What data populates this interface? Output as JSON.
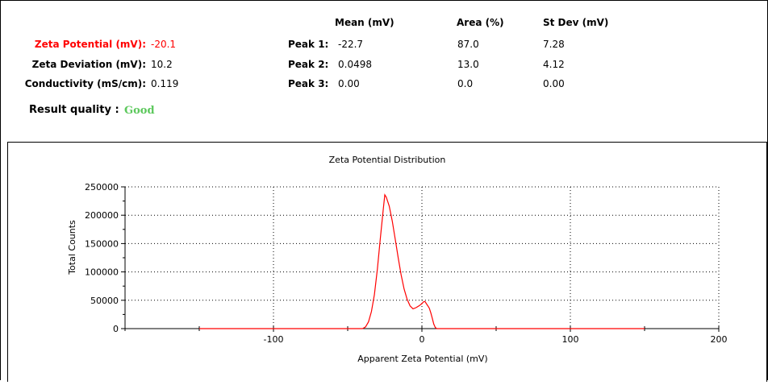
{
  "summary": {
    "zeta_potential_label": "Zeta Potential (mV):",
    "zeta_potential_value": "-20.1",
    "zeta_deviation_label": "Zeta Deviation (mV):",
    "zeta_deviation_value": "10.2",
    "conductivity_label": "Conductivity (mS/cm):",
    "conductivity_value": "0.119",
    "result_quality_label": "Result quality :",
    "result_quality_value": "Good",
    "colors": {
      "highlight": "#ff0000",
      "good": "#5cc85c"
    }
  },
  "peaks_table": {
    "headers": [
      "Mean (mV)",
      "Area (%)",
      "St Dev (mV)"
    ],
    "rows": [
      {
        "label": "Peak 1:",
        "mean": "-22.7",
        "area": "87.0",
        "stdev": "7.28"
      },
      {
        "label": "Peak 2:",
        "mean": "0.0498",
        "area": "13.0",
        "stdev": "4.12"
      },
      {
        "label": "Peak 3:",
        "mean": "0.00",
        "area": "0.0",
        "stdev": "0.00"
      }
    ]
  },
  "chart_data": {
    "type": "line",
    "title": "Zeta Potential Distribution",
    "xlabel": "Apparent Zeta Potential (mV)",
    "ylabel": "Total Counts",
    "xlim": [
      -200,
      200
    ],
    "ylim": [
      0,
      250000
    ],
    "x_ticks": [
      -100,
      0,
      100,
      200
    ],
    "y_ticks": [
      0,
      50000,
      100000,
      150000,
      200000,
      250000
    ],
    "grid": true,
    "line_color": "#ff0000",
    "series": [
      {
        "x": [
          -150,
          -40,
          -38,
          -36,
          -34,
          -32,
          -30,
          -28,
          -26,
          -25,
          -24,
          -22,
          -20,
          -18,
          -16,
          -14,
          -12,
          -10,
          -8,
          -6,
          -4,
          -2,
          0,
          1,
          2,
          3,
          4,
          5,
          6,
          7,
          8,
          9,
          10,
          11,
          12,
          150
        ],
        "y": [
          0,
          0,
          3000,
          12000,
          30000,
          60000,
          105000,
          160000,
          212000,
          236000,
          232000,
          216000,
          190000,
          158000,
          125000,
          95000,
          70000,
          52000,
          40000,
          35000,
          37000,
          40000,
          44000,
          47000,
          48000,
          44000,
          40000,
          36000,
          28000,
          18000,
          8000,
          2000,
          0,
          0,
          0,
          0
        ]
      }
    ]
  }
}
